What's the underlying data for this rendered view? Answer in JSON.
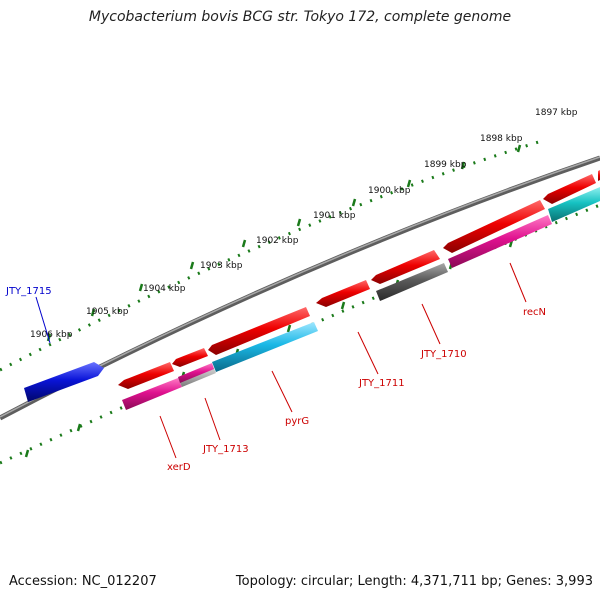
{
  "title": "Mycobacterium bovis BCG str. Tokyo 172, complete genome",
  "footer": {
    "accession": "Accession: NC_012207",
    "topology": "Topology: circular; Length: 4,371,711 bp; Genes: 3,993"
  },
  "ticks": [
    "1897 kbp",
    "1898 kbp",
    "1899 kbp",
    "1900 kbp",
    "1901 kbp",
    "1902 kbp",
    "1903 kbp",
    "1904 kbp",
    "1905 kbp",
    "1906 kbp"
  ],
  "gene_labels": [
    "JTY_1715",
    "recN",
    "JTY_1710",
    "JTY_1711",
    "pyrG",
    "JTY_1713",
    "xerD"
  ],
  "colors": {
    "backbone": "#7f7f7f",
    "tick": "#1a7a1a",
    "red_gene": "#e00000",
    "magenta_gene": "#e0118f",
    "cyan_gene": "#1ab8e6",
    "teal_gene": "#16c2c2",
    "gray_gene": "#5a5a5a",
    "blue_gene": "#0a14d8",
    "label_line_red": "#cc0000",
    "label_line_blue": "#0000cc"
  }
}
